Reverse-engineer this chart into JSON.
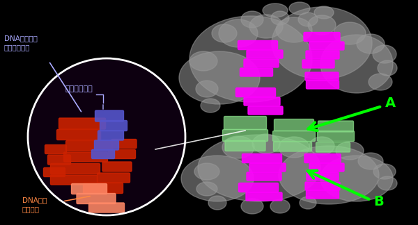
{
  "background_color": "#000000",
  "label_dna_cut_site": "DNA切断活性\nに必要な箇所",
  "label_cross": "交差結合部分",
  "label_dna_cut_active": "DNA切断\n活性部分",
  "label_A": "A",
  "label_B": "B",
  "arrow_color": "#00ff00",
  "circle_color": "#ffffff",
  "text_color_blue": "#aaaaff",
  "text_color_orange": "#ff8844",
  "text_color_green": "#00ff00",
  "text_color_white": "#ffffff",
  "protein_color_magenta": "#ff00ff",
  "protein_color_gray": "#888888",
  "protein_color_red": "#cc2200",
  "protein_color_blue": "#5555cc",
  "protein_color_orange": "#ff8866"
}
